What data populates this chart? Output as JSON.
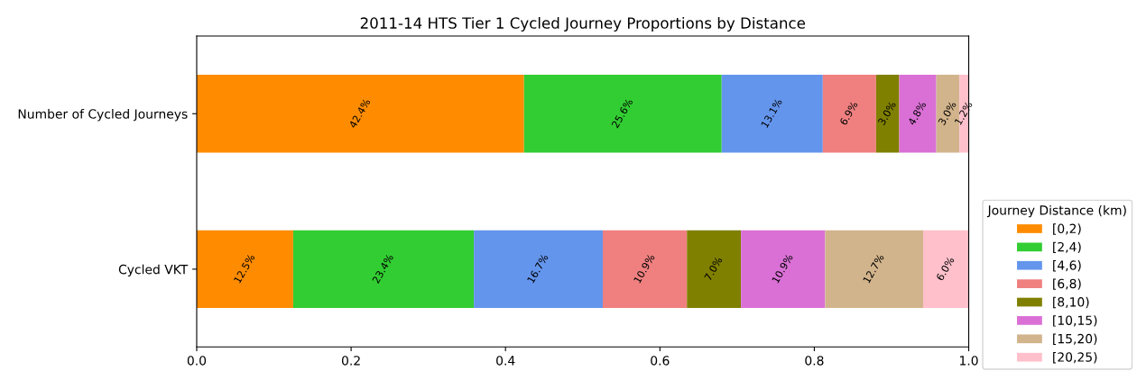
{
  "chart_data": {
    "type": "bar",
    "orientation": "horizontal",
    "stacked": true,
    "title": "2011-14 HTS Tier 1 Cycled Journey Proportions by Distance",
    "categories": [
      "Number of Cycled Journeys",
      "Cycled VKT"
    ],
    "legend_title": "Journey Distance (km)",
    "legend": "right",
    "grid": false,
    "xlim": [
      0,
      1
    ],
    "xticks": [
      {
        "value": 0,
        "label": "0.0"
      },
      {
        "value": 0.2,
        "label": "0.2"
      },
      {
        "value": 0.4,
        "label": "0.4"
      },
      {
        "value": 0.6,
        "label": "0.6"
      },
      {
        "value": 0.8,
        "label": "0.8"
      },
      {
        "value": 1,
        "label": "1.0"
      }
    ],
    "series": [
      {
        "name": "[0,2)",
        "color": "#ff8c00",
        "values": [
          0.424,
          0.125
        ],
        "value_labels": [
          "42.4%",
          "12.5%"
        ]
      },
      {
        "name": "[2,4)",
        "color": "#32cd32",
        "values": [
          0.256,
          0.234
        ],
        "value_labels": [
          "25.6%",
          "23.4%"
        ]
      },
      {
        "name": "[4,6)",
        "color": "#6495ed",
        "values": [
          0.131,
          0.167
        ],
        "value_labels": [
          "13.1%",
          "16.7%"
        ]
      },
      {
        "name": "[6,8)",
        "color": "#f08080",
        "values": [
          0.069,
          0.109
        ],
        "value_labels": [
          "6.9%",
          "10.9%"
        ]
      },
      {
        "name": "[8,10)",
        "color": "#808000",
        "values": [
          0.03,
          0.07
        ],
        "value_labels": [
          "3.0%",
          "7.0%"
        ]
      },
      {
        "name": "[10,15)",
        "color": "#da70d6",
        "values": [
          0.048,
          0.109
        ],
        "value_labels": [
          "4.8%",
          "10.9%"
        ]
      },
      {
        "name": "[15,20)",
        "color": "#d2b48c",
        "values": [
          0.03,
          0.127
        ],
        "value_labels": [
          "3.0%",
          "12.7%"
        ]
      },
      {
        "name": "[20,25)",
        "color": "#ffc0cb",
        "values": [
          0.012,
          0.06
        ],
        "value_labels": [
          "1.2%",
          "6.0%"
        ]
      }
    ]
  }
}
